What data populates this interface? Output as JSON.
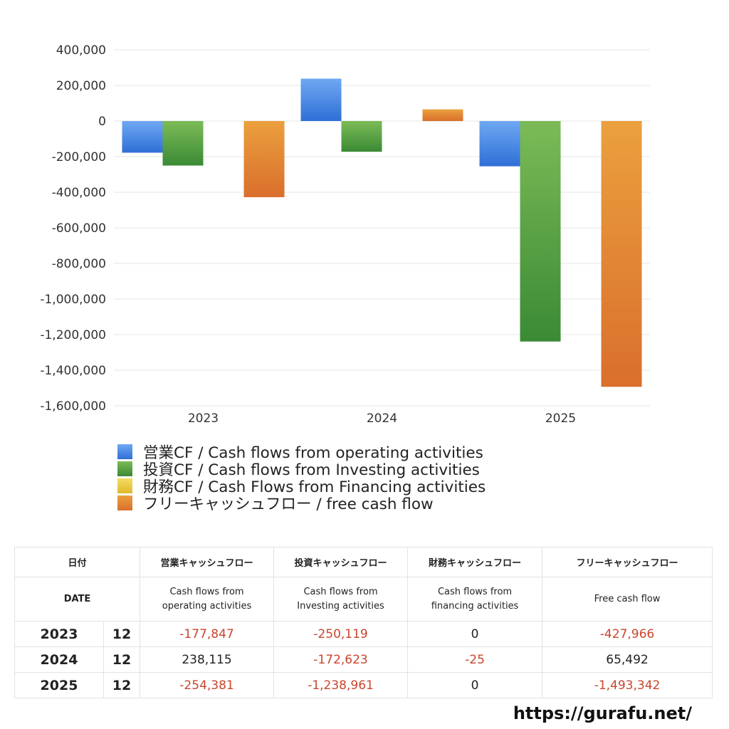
{
  "chart_data": {
    "type": "bar",
    "categories": [
      "2023",
      "2024",
      "2025"
    ],
    "series": [
      {
        "name": "営業CF / Cash flows from operating activities",
        "values": [
          -177847,
          238115,
          -254381
        ],
        "colors": [
          "#2f6fd6",
          "#6fa8f2"
        ]
      },
      {
        "name": "投資CF / Cash flows from Investing activities",
        "values": [
          -250119,
          -172623,
          -1238961
        ],
        "colors": [
          "#3a8a35",
          "#7cbb57"
        ]
      },
      {
        "name": "財務CF / Cash Flows from Financing activities",
        "values": [
          0,
          -25,
          0
        ],
        "colors": [
          "#e0b92a",
          "#f3dd63"
        ]
      },
      {
        "name": "フリーキャッシュフロー / free cash flow",
        "values": [
          -427966,
          65492,
          -1493342
        ],
        "colors": [
          "#d96f2c",
          "#eba03e"
        ]
      }
    ],
    "ylim": [
      -1600000,
      400000
    ],
    "yticks": [
      "400,000",
      "200,000",
      "0",
      "-200,000",
      "-400,000",
      "-600,000",
      "-800,000",
      "-1,000,000",
      "-1,200,000",
      "-1,400,000",
      "-1,600,000"
    ],
    "grid": true,
    "legend": "bottom-left"
  },
  "table": {
    "header_date": "日付",
    "header_date_en": "DATE",
    "headers": [
      "営業キャッシュフロー",
      "投資キャッシュフロー",
      "財務キャッシュフロー",
      "フリーキャッシュフロー"
    ],
    "headers_en": [
      [
        "Cash flows from",
        "operating activities"
      ],
      [
        "Cash flows from",
        "Investing activities"
      ],
      [
        "Cash flows from",
        "financing activities"
      ],
      [
        "Free cash flow",
        ""
      ]
    ],
    "rows": [
      {
        "year": "2023",
        "month": "12",
        "values": [
          "-177,847",
          "-250,119",
          "0",
          "-427,966"
        ]
      },
      {
        "year": "2024",
        "month": "12",
        "values": [
          "238,115",
          "-172,623",
          "-25",
          "65,492"
        ]
      },
      {
        "year": "2025",
        "month": "12",
        "values": [
          "-254,381",
          "-1,238,961",
          "0",
          "-1,493,342"
        ]
      }
    ]
  },
  "site_url": "https://gurafu.net/"
}
